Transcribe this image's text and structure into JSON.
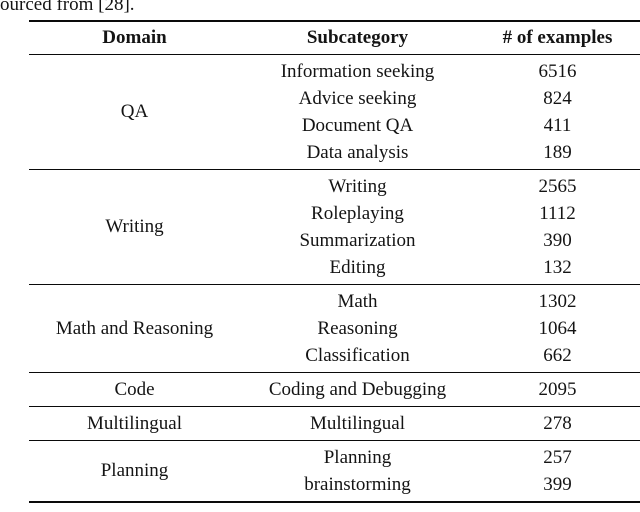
{
  "caption": {
    "text": "ourced from [28]."
  },
  "table": {
    "headers": [
      "Domain",
      "Subcategory",
      "# of examples"
    ],
    "sections": [
      {
        "domain": "QA",
        "rows": [
          {
            "subcategory": "Information seeking",
            "count": "6516"
          },
          {
            "subcategory": "Advice seeking",
            "count": "824"
          },
          {
            "subcategory": "Document QA",
            "count": "411"
          },
          {
            "subcategory": "Data analysis",
            "count": "189"
          }
        ]
      },
      {
        "domain": "Writing",
        "rows": [
          {
            "subcategory": "Writing",
            "count": "2565"
          },
          {
            "subcategory": "Roleplaying",
            "count": "1112"
          },
          {
            "subcategory": "Summarization",
            "count": "390"
          },
          {
            "subcategory": "Editing",
            "count": "132"
          }
        ]
      },
      {
        "domain": "Math and Reasoning",
        "rows": [
          {
            "subcategory": "Math",
            "count": "1302"
          },
          {
            "subcategory": "Reasoning",
            "count": "1064"
          },
          {
            "subcategory": "Classification",
            "count": "662"
          }
        ]
      },
      {
        "domain": "Code",
        "rows": [
          {
            "subcategory": "Coding and Debugging",
            "count": "2095"
          }
        ]
      },
      {
        "domain": "Multilingual",
        "rows": [
          {
            "subcategory": "Multilingual",
            "count": "278"
          }
        ]
      },
      {
        "domain": "Planning",
        "rows": [
          {
            "subcategory": "Planning",
            "count": "257"
          },
          {
            "subcategory": "brainstorming",
            "count": "399"
          }
        ]
      }
    ]
  }
}
